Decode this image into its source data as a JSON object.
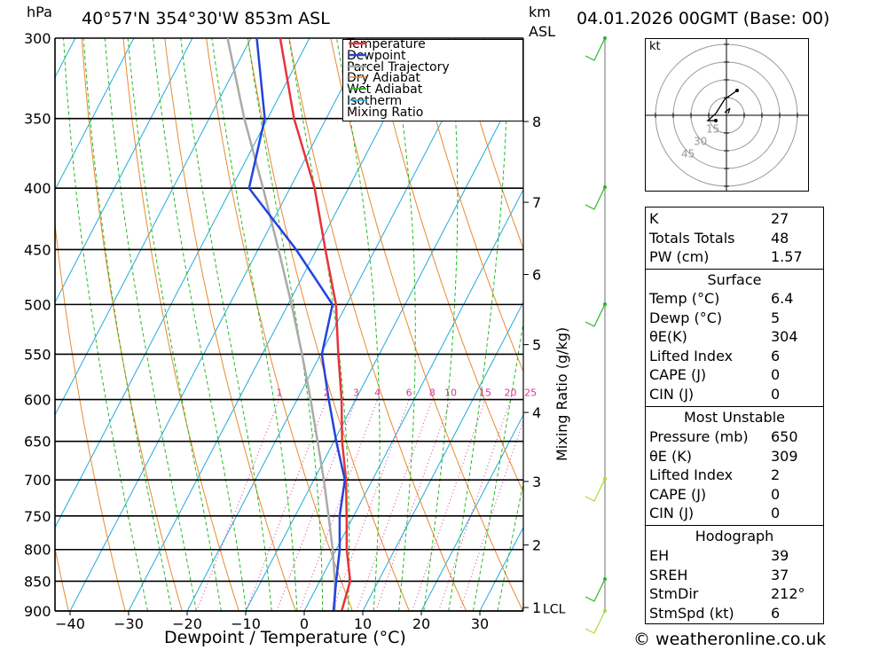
{
  "header": {
    "location": "40°57'N 354°30'W 853m ASL",
    "date": "04.01.2026 00GMT (Base: 00)",
    "unit_pressure": "hPa",
    "unit_km": "km",
    "unit_asl": "ASL"
  },
  "chart_data": {
    "type": "line",
    "title": "",
    "xlabel": "Dewpoint / Temperature (°C)",
    "ylabel": "hPa",
    "right_label": "Mixing Ratio (g/kg)",
    "xlim": [
      -45,
      37
    ],
    "ylim": [
      900,
      300
    ],
    "y_scale": "log-pressure (skew-T)",
    "pressure_ticks": [
      300,
      350,
      400,
      450,
      500,
      550,
      600,
      650,
      700,
      750,
      800,
      850,
      900
    ],
    "temperature_ticks": [
      -40,
      -30,
      -20,
      -10,
      0,
      10,
      20,
      30
    ],
    "height_ticks": [
      {
        "km": "8",
        "p": 352
      },
      {
        "km": "7",
        "p": 411
      },
      {
        "km": "6",
        "p": 472
      },
      {
        "km": "5",
        "p": 540
      },
      {
        "km": "4",
        "p": 615
      },
      {
        "km": "3",
        "p": 702
      },
      {
        "km": "2",
        "p": 793
      },
      {
        "km": "1",
        "p": 894
      }
    ],
    "lcl_label": "LCL",
    "lcl_pressure": 895,
    "mixing_ratio_labels": [
      "1",
      "2",
      "3",
      "4",
      "6",
      "8",
      "10",
      "15",
      "20",
      "25"
    ],
    "mixing_ratio_values": [
      1,
      2,
      3,
      4,
      6,
      8,
      10,
      15,
      20,
      25
    ],
    "legend": [
      "Temperature",
      "Dewpoint",
      "Parcel Trajectory",
      "Dry Adiabat",
      "Wet Adiabat",
      "Isotherm",
      "Mixing Ratio"
    ],
    "legend_position": "top-right",
    "colors": {
      "temperature": "#e8333a",
      "dewpoint": "#2244dd",
      "parcel": "#aaaaaa",
      "dry_adiabat": "#e88a2e",
      "wet_adiabat": "#22bb22",
      "isotherm": "#22aadd",
      "mixing_ratio": "#dd3399"
    },
    "series": [
      {
        "name": "Temperature",
        "points": [
          [
            900,
            6.4
          ],
          [
            850,
            5.2
          ],
          [
            800,
            1.8
          ],
          [
            750,
            -1.2
          ],
          [
            700,
            -4.5
          ],
          [
            650,
            -8.6
          ],
          [
            600,
            -12.4
          ],
          [
            550,
            -17.0
          ],
          [
            500,
            -21.8
          ],
          [
            450,
            -28.5
          ],
          [
            400,
            -35.8
          ],
          [
            350,
            -45.5
          ],
          [
            300,
            -55.0
          ]
        ]
      },
      {
        "name": "Dewpoint",
        "points": [
          [
            900,
            5.0
          ],
          [
            850,
            2.8
          ],
          [
            800,
            0.6
          ],
          [
            750,
            -2.4
          ],
          [
            700,
            -4.7
          ],
          [
            650,
            -9.6
          ],
          [
            600,
            -14.6
          ],
          [
            550,
            -19.8
          ],
          [
            500,
            -22.4
          ],
          [
            450,
            -33.5
          ],
          [
            400,
            -47.0
          ],
          [
            350,
            -50.5
          ],
          [
            300,
            -59.0
          ]
        ]
      },
      {
        "name": "Parcel Trajectory",
        "points": [
          [
            900,
            5.2
          ],
          [
            850,
            2.6
          ],
          [
            800,
            -0.6
          ],
          [
            750,
            -4.3
          ],
          [
            700,
            -8.3
          ],
          [
            650,
            -12.8
          ],
          [
            600,
            -17.7
          ],
          [
            550,
            -23.2
          ],
          [
            500,
            -29.4
          ],
          [
            450,
            -36.5
          ],
          [
            400,
            -44.6
          ],
          [
            350,
            -54.0
          ],
          [
            300,
            -64.0
          ]
        ]
      }
    ]
  },
  "hodograph": {
    "unit": "kt",
    "ring_labels": [
      "15",
      "30",
      "45"
    ]
  },
  "indices": {
    "rows": [
      {
        "label": "K",
        "value": "27"
      },
      {
        "label": "Totals Totals",
        "value": "48"
      },
      {
        "label": "PW (cm)",
        "value": "1.57"
      }
    ],
    "surface": {
      "title": "Surface",
      "rows": [
        {
          "label": "Temp (°C)",
          "value": "6.4"
        },
        {
          "label": "Dewp (°C)",
          "value": "5"
        },
        {
          "label": "θE(K)",
          "value": "304"
        },
        {
          "label": "Lifted Index",
          "value": "6"
        },
        {
          "label": "CAPE (J)",
          "value": "0"
        },
        {
          "label": "CIN (J)",
          "value": "0"
        }
      ]
    },
    "unstable": {
      "title": "Most Unstable",
      "rows": [
        {
          "label": "Pressure (mb)",
          "value": "650"
        },
        {
          "label": "θE (K)",
          "value": "309"
        },
        {
          "label": "Lifted Index",
          "value": "2"
        },
        {
          "label": "CAPE (J)",
          "value": "0"
        },
        {
          "label": "CIN (J)",
          "value": "0"
        }
      ]
    },
    "hodo": {
      "title": "Hodograph",
      "rows": [
        {
          "label": "EH",
          "value": "39"
        },
        {
          "label": "SREH",
          "value": "37"
        },
        {
          "label": "StmDir",
          "value": "212°"
        },
        {
          "label": "StmSpd (kt)",
          "value": "6"
        }
      ]
    }
  },
  "footer": "© weatheronline.co.uk"
}
